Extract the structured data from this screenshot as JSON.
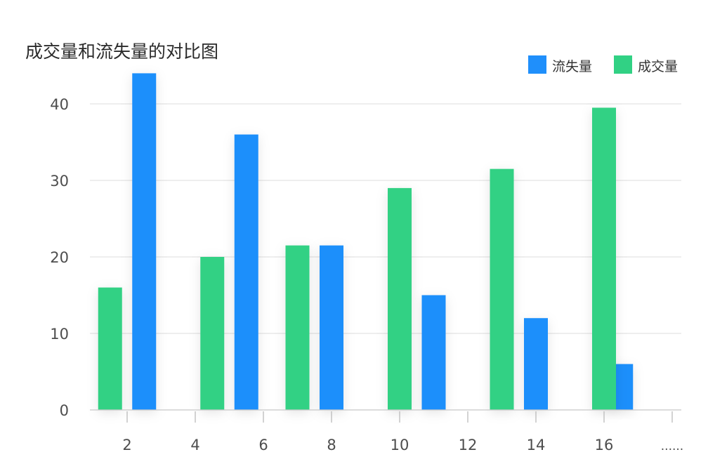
{
  "chart_data": {
    "type": "bar",
    "title": "成交量和流失量的对比图",
    "xlabel": "",
    "ylabel": "",
    "ylim": [
      0,
      45
    ],
    "yticks": [
      0,
      10,
      20,
      30,
      40
    ],
    "xticks": [
      "2",
      "4",
      "6",
      "8",
      "10",
      "12",
      "14",
      "16",
      "......"
    ],
    "grid": true,
    "legend_position": "top-right",
    "series": [
      {
        "name": "流失量",
        "color": "#1f8ffb",
        "x": [
          2.5,
          5.5,
          8.0,
          11.0,
          14.0,
          16.5
        ],
        "values": [
          44,
          36,
          21.5,
          15,
          12,
          6
        ]
      },
      {
        "name": "成交量",
        "color": "#31d184",
        "x": [
          1.5,
          4.5,
          7.0,
          10.0,
          13.0,
          16.0
        ],
        "values": [
          16,
          20,
          21.5,
          29,
          31.5,
          39.5
        ]
      }
    ]
  }
}
